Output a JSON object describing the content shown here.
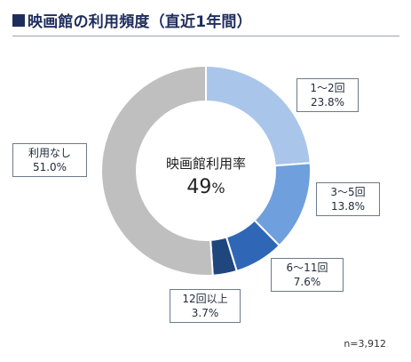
{
  "title": "映画館の利用頻度（直近1年間）",
  "center": {
    "title": "映画館利用率",
    "value": "49",
    "unit": "%"
  },
  "note": "n=3,912",
  "chart_data": {
    "type": "pie",
    "title": "映画館の利用頻度（直近1年間）",
    "donut": true,
    "categories": [
      "1～2回",
      "3～5回",
      "6～11回",
      "12回以上",
      "利用なし"
    ],
    "values": [
      23.8,
      13.8,
      7.6,
      3.7,
      51.0
    ],
    "value_labels": [
      "23.8%",
      "13.8%",
      "7.6%",
      "3.7%",
      "51.0%"
    ],
    "colors": [
      "#a9c6ea",
      "#6f9fdc",
      "#2f67b6",
      "#1f477d",
      "#bfbfbf"
    ],
    "start_angle_deg": 0,
    "direction": "clockwise"
  }
}
